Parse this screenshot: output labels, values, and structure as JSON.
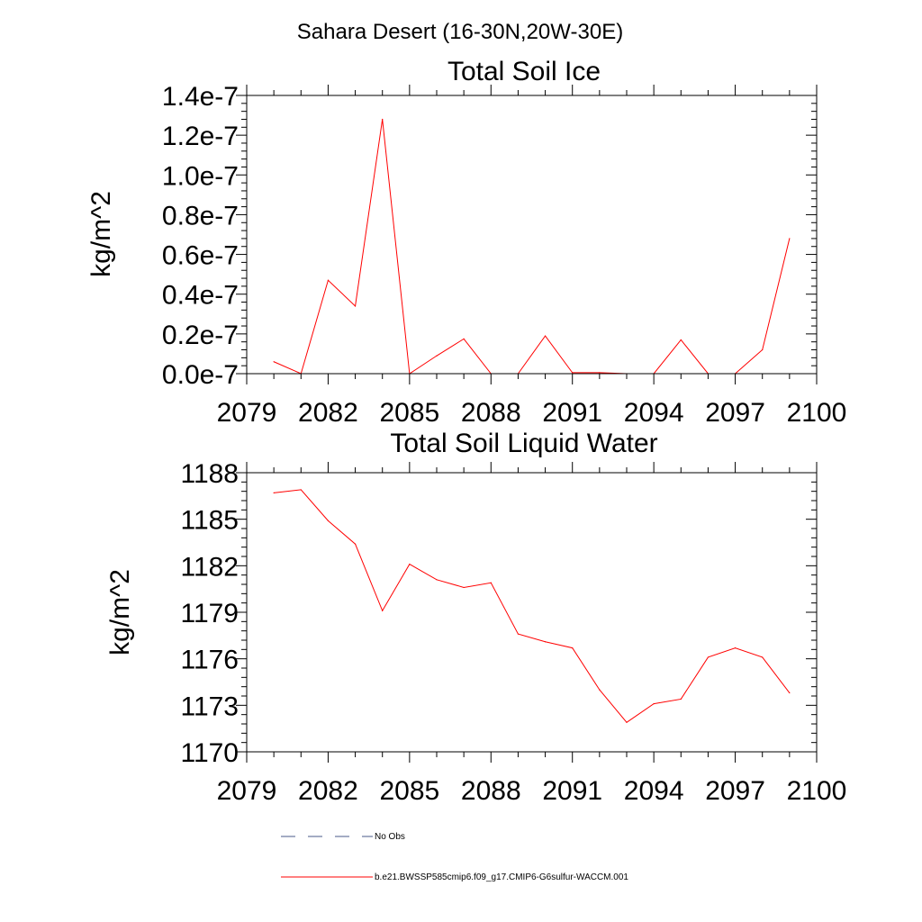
{
  "figure": {
    "title": "Sahara Desert (16-30N,20W-30E)"
  },
  "chart_data": [
    {
      "type": "line",
      "title": "Total Soil Ice",
      "ylabel": "kg/m^2",
      "xlabel": "",
      "xlim": [
        2079,
        2100
      ],
      "ylim": [
        0,
        1.4e-07
      ],
      "x_ticks": [
        2079,
        2082,
        2085,
        2088,
        2091,
        2094,
        2097,
        2100
      ],
      "y_ticks": [
        0,
        2e-08,
        4e-08,
        6e-08,
        8e-08,
        1e-07,
        1.2e-07,
        1.4e-07
      ],
      "y_tick_labels": [
        "0.0e-7",
        "0.2e-7",
        "0.4e-7",
        "0.6e-7",
        "0.8e-7",
        "1.0e-7",
        "1.2e-7",
        "1.4e-7"
      ],
      "grid": false,
      "series": [
        {
          "name": "b.e21.BWSSP585cmip6.f09_g17.CMIP6-G6sulfur-WACCM.001",
          "color": "#ff0000",
          "x": [
            2080,
            2081,
            2082,
            2083,
            2084,
            2085,
            2086,
            2087,
            2088,
            2089,
            2090,
            2091,
            2092,
            2093,
            2094,
            2095,
            2096,
            2097,
            2098,
            2099
          ],
          "values": [
            6e-09,
            0,
            4.7e-08,
            3.4e-08,
            1.28e-07,
            0,
            9e-09,
            1.75e-08,
            0,
            0,
            1.9e-08,
            5e-10,
            5e-10,
            0,
            0,
            1.7e-08,
            0,
            0,
            1.2e-08,
            6.8e-08
          ]
        }
      ]
    },
    {
      "type": "line",
      "title": "Total Soil Liquid Water",
      "ylabel": "kg/m^2",
      "xlabel": "",
      "xlim": [
        2079,
        2100
      ],
      "ylim": [
        1170,
        1188
      ],
      "x_ticks": [
        2079,
        2082,
        2085,
        2088,
        2091,
        2094,
        2097,
        2100
      ],
      "y_ticks": [
        1170,
        1173,
        1176,
        1179,
        1182,
        1185,
        1188
      ],
      "y_tick_labels": [
        "1170",
        "1173",
        "1176",
        "1179",
        "1182",
        "1185",
        "1188"
      ],
      "grid": false,
      "series": [
        {
          "name": "b.e21.BWSSP585cmip6.f09_g17.CMIP6-G6sulfur-WACCM.001",
          "color": "#ff0000",
          "x": [
            2080,
            2081,
            2082,
            2083,
            2084,
            2085,
            2086,
            2087,
            2088,
            2089,
            2090,
            2091,
            2092,
            2093,
            2094,
            2095,
            2096,
            2097,
            2098,
            2099
          ],
          "values": [
            1186.7,
            1186.9,
            1184.9,
            1183.4,
            1179.1,
            1182.1,
            1181.1,
            1180.6,
            1180.9,
            1177.6,
            1177.1,
            1176.7,
            1174.0,
            1171.9,
            1173.1,
            1173.4,
            1176.1,
            1176.7,
            1176.1,
            1173.8
          ]
        }
      ]
    }
  ],
  "legend": {
    "placement": "bottom",
    "items": [
      {
        "label": "No Obs",
        "style": "dashed",
        "color": "#4a5a8a"
      },
      {
        "label": "b.e21.BWSSP585cmip6.f09_g17.CMIP6-G6sulfur-WACCM.001",
        "style": "solid",
        "color": "#ff0000"
      }
    ]
  }
}
